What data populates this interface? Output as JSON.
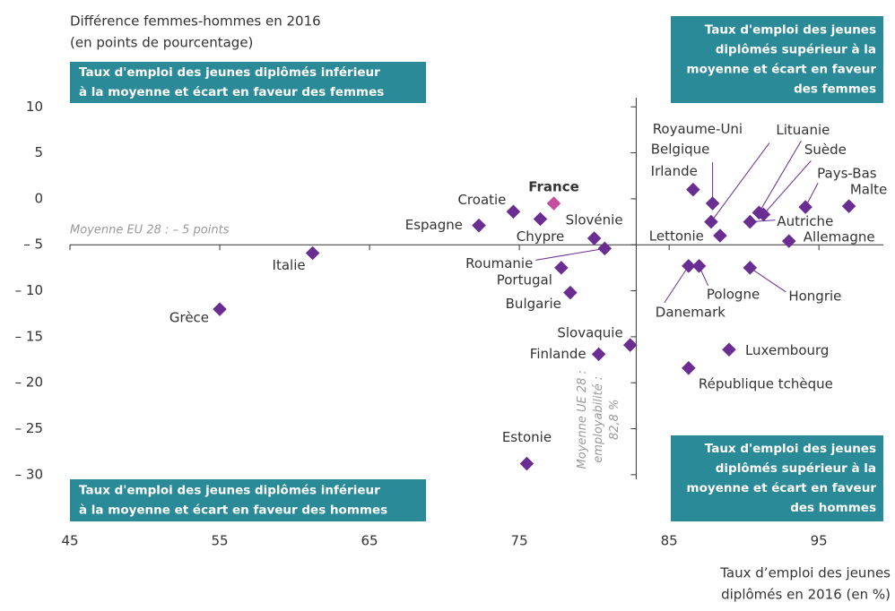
{
  "chart_data": {
    "type": "scatter",
    "y_axis_label": [
      "Différence femmes-hommes en 2016",
      "(en points de pourcentage)"
    ],
    "x_axis_label": [
      "Taux d’emploi des jeunes",
      "diplômés en 2016 (en %)"
    ],
    "xlim": [
      45,
      99.3
    ],
    "ylim": [
      -30.5,
      11
    ],
    "xticks": [
      45,
      55,
      65,
      75,
      85,
      95
    ],
    "yticks": [
      10,
      5,
      0,
      {
        "value": -5,
        "label": "– 5"
      },
      {
        "value": -10,
        "label": "– 10"
      },
      {
        "value": -15,
        "label": "– 15"
      },
      {
        "value": -20,
        "label": "– 20"
      },
      {
        "value": -25,
        "label": "– 25"
      },
      {
        "value": -30,
        "label": "– 30"
      }
    ],
    "average_x": 82.8,
    "average_x_label": [
      "Moyenne UE 28 :",
      "employabilité :",
      "82,8 %"
    ],
    "average_y": -5,
    "average_y_label": "Moyenne EU 28 : – 5 points",
    "quadrants": {
      "top_left": [
        "Taux d'emploi des jeunes diplômés inférieur",
        "à la moyenne et écart en faveur des femmes"
      ],
      "top_right": [
        "Taux d'emploi des jeunes",
        "diplômés supérieur à la",
        "moyenne et écart en faveur",
        "des femmes"
      ],
      "bottom_left": [
        "Taux d'emploi des jeunes diplômés inférieur",
        "à la moyenne et écart en faveur des hommes"
      ],
      "bottom_right": [
        "Taux d'emploi des jeunes",
        "diplômés supérieur à la",
        "moyenne et écart en faveur",
        "des hommes"
      ]
    },
    "quadrant_color": "#2b8a98",
    "labels": [
      "Grèce",
      "Italie",
      "Espagne",
      "Croatie",
      "Chypre",
      "France",
      "Slovénie",
      "Roumanie",
      "Portugal",
      "Bulgarie",
      "Slovaquie",
      "Finlande",
      "Estonie",
      "Irlande",
      "Belgique",
      "Royaume-Uni",
      "Lettonie",
      "Lituanie",
      "Suède",
      "Autriche",
      "Pays-Bas",
      "Malte",
      "Allemagne",
      "Danemark",
      "Pologne",
      "Hongrie",
      "Luxembourg",
      "République tchèque"
    ],
    "x": [
      55.0,
      61.2,
      72.3,
      74.6,
      76.4,
      77.3,
      80.0,
      80.7,
      77.8,
      78.4,
      82.4,
      80.3,
      75.5,
      86.6,
      87.9,
      87.8,
      88.4,
      91.0,
      91.3,
      90.4,
      94.1,
      97.0,
      93.0,
      86.3,
      87.0,
      90.4,
      89.0,
      86.3
    ],
    "values": [
      -12,
      -5.9,
      -2.9,
      -1.4,
      -2.2,
      -0.5,
      -4.3,
      -5.4,
      -7.5,
      -10.2,
      -15.9,
      -16.9,
      -28.8,
      1.0,
      -0.5,
      -2.5,
      -4.0,
      -1.5,
      -1.7,
      -2.5,
      -0.9,
      -0.8,
      -4.6,
      -7.3,
      -7.3,
      -7.5,
      -16.4,
      -18.4
    ],
    "colors": [
      "#6a2d91",
      "#6a2d91",
      "#6a2d91",
      "#6a2d91",
      "#6a2d91",
      "#c54f9e",
      "#6a2d91",
      "#6a2d91",
      "#6a2d91",
      "#6a2d91",
      "#6a2d91",
      "#6a2d91",
      "#6a2d91",
      "#6a2d91",
      "#6a2d91",
      "#6a2d91",
      "#6a2d91",
      "#6a2d91",
      "#6a2d91",
      "#6a2d91",
      "#6a2d91",
      "#6a2d91",
      "#6a2d91",
      "#6a2d91",
      "#6a2d91",
      "#6a2d91",
      "#6a2d91",
      "#6a2d91"
    ]
  }
}
